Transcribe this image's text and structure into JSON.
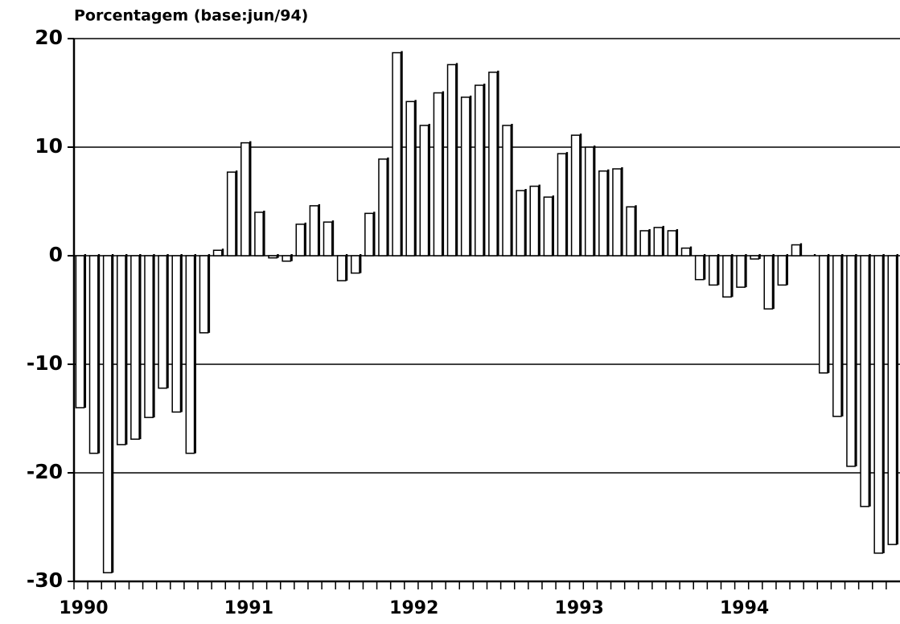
{
  "chart_data": {
    "type": "bar",
    "y_label": "Porcentagem (base:jun/94)",
    "categories": [
      "1990",
      null,
      null,
      null,
      null,
      null,
      null,
      null,
      null,
      null,
      null,
      null,
      "1991",
      null,
      null,
      null,
      null,
      null,
      null,
      null,
      null,
      null,
      null,
      null,
      "1992",
      null,
      null,
      null,
      null,
      null,
      null,
      null,
      null,
      null,
      null,
      null,
      "1993",
      null,
      null,
      null,
      null,
      null,
      null,
      null,
      null,
      null,
      null,
      null,
      "1994",
      null,
      null,
      null,
      null,
      null,
      null,
      null,
      null,
      null,
      null,
      null
    ],
    "values": [
      -14,
      -18.2,
      -29.2,
      -17.4,
      -16.9,
      -14.9,
      -12.2,
      -14.4,
      -18.2,
      -7.1,
      0.5,
      7.7,
      10.4,
      4,
      -0.2,
      -0.5,
      2.9,
      4.6,
      3.1,
      -2.3,
      -1.6,
      3.9,
      8.9,
      18.7,
      14.2,
      12,
      15,
      17.6,
      14.6,
      15.7,
      16.9,
      12,
      6,
      6.4,
      5.4,
      9.4,
      11.1,
      10,
      7.8,
      8,
      4.5,
      2.3,
      2.6,
      2.3,
      0.7,
      -2.2,
      -2.7,
      -3.8,
      -2.9,
      -0.3,
      -4.9,
      -2.7,
      1,
      0,
      -10.8,
      -14.8,
      -19.4,
      -23.1,
      -27.4,
      -26.6
    ],
    "color": "#ffffff",
    "ylim": [
      -30,
      20
    ],
    "yticks": [
      -30,
      -20,
      -10,
      0,
      10,
      20
    ],
    "grid": true
  }
}
